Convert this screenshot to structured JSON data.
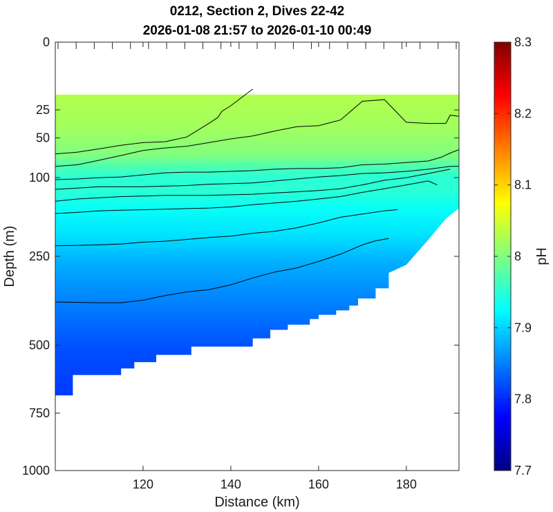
{
  "chart_data": {
    "type": "heatmap",
    "title": [
      "0212, Section 2, Dives 22-42",
      "2026-01-08 21:57 to 2026-01-10 00:49"
    ],
    "xlabel": "Distance (km)",
    "ylabel": "Depth (m)",
    "xlim": [
      100,
      192
    ],
    "xticks": [
      120,
      140,
      160,
      180
    ],
    "ylim": [
      0,
      1000
    ],
    "yscale": "sqrt",
    "yticks": [
      0,
      25,
      50,
      100,
      250,
      500,
      750,
      1000
    ],
    "colorbar": {
      "label": "pH",
      "clim": [
        7.7,
        8.3
      ],
      "ticks": [
        "8.3",
        "8.2",
        "8.1",
        "8",
        "7.9",
        "7.8",
        "7.7"
      ],
      "colormap": "jet"
    },
    "data_top_depth": 15,
    "bottom_boundary": [
      [
        100,
        680
      ],
      [
        104,
        680
      ],
      [
        104,
        604
      ],
      [
        115,
        604
      ],
      [
        115,
        580
      ],
      [
        118,
        580
      ],
      [
        118,
        558
      ],
      [
        123,
        558
      ],
      [
        123,
        533
      ],
      [
        131,
        533
      ],
      [
        131,
        505
      ],
      [
        145,
        505
      ],
      [
        145,
        478
      ],
      [
        149,
        478
      ],
      [
        149,
        451
      ],
      [
        153,
        451
      ],
      [
        153,
        435
      ],
      [
        158,
        435
      ],
      [
        158,
        418
      ],
      [
        160,
        418
      ],
      [
        160,
        405
      ],
      [
        164,
        405
      ],
      [
        164,
        392
      ],
      [
        167,
        392
      ],
      [
        167,
        378
      ],
      [
        169,
        378
      ],
      [
        169,
        358
      ],
      [
        173,
        358
      ],
      [
        173,
        330
      ],
      [
        176,
        330
      ],
      [
        176,
        290
      ],
      [
        180,
        270
      ],
      [
        185,
        213
      ],
      [
        189,
        170
      ],
      [
        192,
        150
      ],
      [
        192,
        15
      ]
    ],
    "contours": [
      {
        "points": [
          [
            100,
            68
          ],
          [
            105,
            66
          ],
          [
            110,
            62
          ],
          [
            115,
            58
          ],
          [
            120,
            55
          ],
          [
            125,
            54
          ],
          [
            130,
            49
          ],
          [
            135,
            36
          ],
          [
            137,
            31
          ],
          [
            138,
            26
          ],
          [
            140,
            22
          ],
          [
            145,
            12
          ]
        ]
      },
      {
        "points": [
          [
            100,
            84
          ],
          [
            105,
            82
          ],
          [
            110,
            76
          ],
          [
            115,
            70
          ],
          [
            120,
            64
          ],
          [
            125,
            61
          ],
          [
            130,
            59
          ],
          [
            135,
            55
          ],
          [
            140,
            51
          ],
          [
            145,
            48
          ],
          [
            150,
            43
          ],
          [
            155,
            39
          ],
          [
            160,
            38
          ],
          [
            165,
            33
          ],
          [
            170,
            19
          ],
          [
            175,
            18
          ],
          [
            180,
            35
          ],
          [
            185,
            36
          ],
          [
            189,
            36
          ],
          [
            190,
            29
          ],
          [
            192,
            30
          ]
        ]
      },
      {
        "points": [
          [
            100,
            103
          ],
          [
            105,
            102
          ],
          [
            110,
            100
          ],
          [
            115,
            99
          ],
          [
            120,
            96
          ],
          [
            125,
            93
          ],
          [
            130,
            92
          ],
          [
            135,
            92
          ],
          [
            140,
            91
          ],
          [
            145,
            90
          ],
          [
            150,
            88
          ],
          [
            155,
            87
          ],
          [
            160,
            87
          ],
          [
            165,
            86
          ],
          [
            170,
            82
          ],
          [
            175,
            81
          ],
          [
            180,
            79
          ],
          [
            185,
            77
          ],
          [
            188,
            72
          ],
          [
            190,
            67
          ],
          [
            192,
            63
          ]
        ]
      },
      {
        "points": [
          [
            100,
            118
          ],
          [
            105,
            116
          ],
          [
            110,
            114
          ],
          [
            115,
            114
          ],
          [
            120,
            114
          ],
          [
            125,
            113
          ],
          [
            130,
            112
          ],
          [
            135,
            110
          ],
          [
            140,
            109
          ],
          [
            145,
            108
          ],
          [
            150,
            105
          ],
          [
            155,
            102
          ],
          [
            160,
            99
          ],
          [
            165,
            97
          ],
          [
            170,
            94
          ],
          [
            175,
            93
          ],
          [
            180,
            91
          ],
          [
            185,
            88
          ],
          [
            190,
            84
          ],
          [
            192,
            84
          ]
        ]
      },
      {
        "points": [
          [
            100,
            138
          ],
          [
            105,
            134
          ],
          [
            110,
            132
          ],
          [
            115,
            130
          ],
          [
            120,
            129
          ],
          [
            125,
            128
          ],
          [
            130,
            128
          ],
          [
            135,
            128
          ],
          [
            140,
            127
          ],
          [
            145,
            126
          ],
          [
            150,
            124
          ],
          [
            155,
            122
          ],
          [
            160,
            120
          ],
          [
            165,
            117
          ],
          [
            170,
            111
          ],
          [
            175,
            104
          ],
          [
            180,
            100
          ],
          [
            185,
            94
          ],
          [
            190,
            88
          ]
        ]
      },
      {
        "points": [
          [
            100,
            160
          ],
          [
            105,
            158
          ],
          [
            110,
            155
          ],
          [
            115,
            154
          ],
          [
            120,
            153
          ],
          [
            125,
            152
          ],
          [
            130,
            151
          ],
          [
            135,
            150
          ],
          [
            140,
            148
          ],
          [
            145,
            144
          ],
          [
            150,
            141
          ],
          [
            155,
            138
          ],
          [
            160,
            134
          ],
          [
            165,
            130
          ],
          [
            170,
            123
          ],
          [
            175,
            117
          ],
          [
            180,
            111
          ],
          [
            185,
            105
          ],
          [
            187,
            111
          ]
        ]
      },
      {
        "points": [
          [
            100,
            226
          ],
          [
            105,
            225
          ],
          [
            110,
            224
          ],
          [
            115,
            222
          ],
          [
            120,
            218
          ],
          [
            125,
            216
          ],
          [
            130,
            212
          ],
          [
            135,
            208
          ],
          [
            140,
            205
          ],
          [
            145,
            199
          ],
          [
            150,
            195
          ],
          [
            155,
            188
          ],
          [
            160,
            178
          ],
          [
            165,
            167
          ],
          [
            170,
            161
          ],
          [
            175,
            155
          ],
          [
            178,
            153
          ]
        ]
      },
      {
        "points": [
          [
            100,
            368
          ],
          [
            110,
            370
          ],
          [
            115,
            370
          ],
          [
            120,
            363
          ],
          [
            125,
            350
          ],
          [
            130,
            340
          ],
          [
            135,
            334
          ],
          [
            140,
            321
          ],
          [
            145,
            303
          ],
          [
            150,
            288
          ],
          [
            155,
            278
          ],
          [
            160,
            262
          ],
          [
            165,
            245
          ],
          [
            170,
            224
          ],
          [
            173,
            215
          ],
          [
            176,
            210
          ]
        ]
      }
    ]
  }
}
